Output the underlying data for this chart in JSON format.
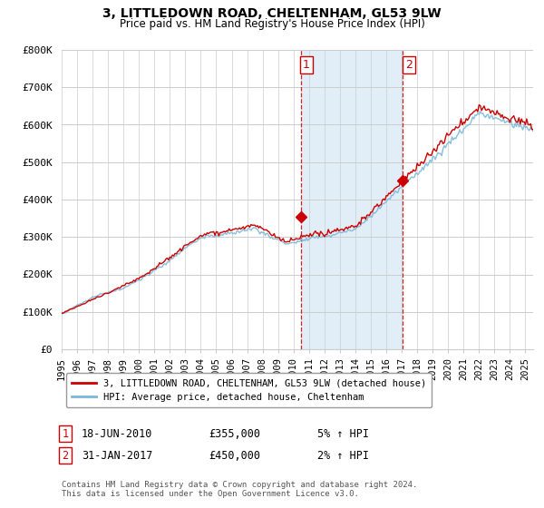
{
  "title": "3, LITTLEDOWN ROAD, CHELTENHAM, GL53 9LW",
  "subtitle": "Price paid vs. HM Land Registry's House Price Index (HPI)",
  "ylabel_ticks": [
    "£0",
    "£100K",
    "£200K",
    "£300K",
    "£400K",
    "£500K",
    "£600K",
    "£700K",
    "£800K"
  ],
  "ylim": [
    0,
    800000
  ],
  "xlim_start": 1995.0,
  "xlim_end": 2025.5,
  "hpi_color": "#7ab8d9",
  "price_color": "#cc0000",
  "sale1_date": 2010.46,
  "sale1_price": 355000,
  "sale1_label": "1",
  "sale2_date": 2017.08,
  "sale2_price": 450000,
  "sale2_label": "2",
  "legend_line1": "3, LITTLEDOWN ROAD, CHELTENHAM, GL53 9LW (detached house)",
  "legend_line2": "HPI: Average price, detached house, Cheltenham",
  "annotation1_date": "18-JUN-2010",
  "annotation1_price": "£355,000",
  "annotation1_hpi": "5% ↑ HPI",
  "annotation2_date": "31-JAN-2017",
  "annotation2_price": "£450,000",
  "annotation2_hpi": "2% ↑ HPI",
  "footnote": "Contains HM Land Registry data © Crown copyright and database right 2024.\nThis data is licensed under the Open Government Licence v3.0.",
  "background_color": "#ffffff",
  "plot_bg_color": "#ffffff",
  "grid_color": "#cccccc",
  "shaded_color": "#daeaf5"
}
